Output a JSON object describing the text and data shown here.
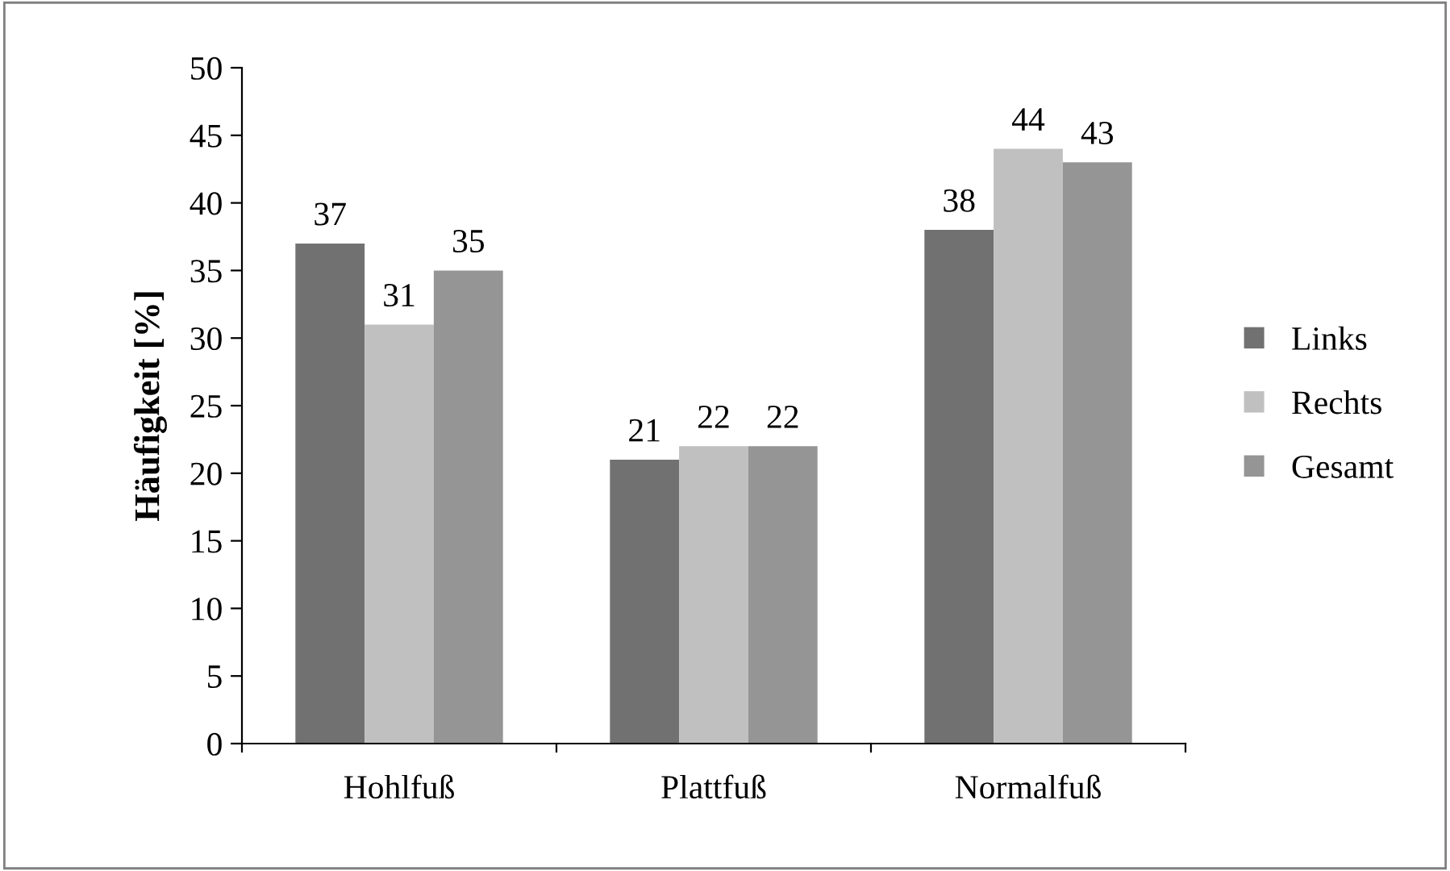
{
  "chart_data": {
    "type": "bar",
    "ylabel": "Häufigkeit [%]",
    "categories": [
      "Hohlfuß",
      "Plattfuß",
      "Normalfuß"
    ],
    "series": [
      {
        "name": "Links",
        "color": "#717171",
        "values": [
          37,
          21,
          38
        ]
      },
      {
        "name": "Rechts",
        "color": "#c0c0c0",
        "values": [
          31,
          22,
          44
        ]
      },
      {
        "name": "Gesamt",
        "color": "#959595",
        "values": [
          35,
          22,
          43
        ]
      }
    ],
    "ylim": [
      0,
      50
    ],
    "yticks": [
      0,
      5,
      10,
      15,
      20,
      25,
      30,
      35,
      40,
      45,
      50
    ],
    "grid": false,
    "legend": "right",
    "data_labels": true
  }
}
